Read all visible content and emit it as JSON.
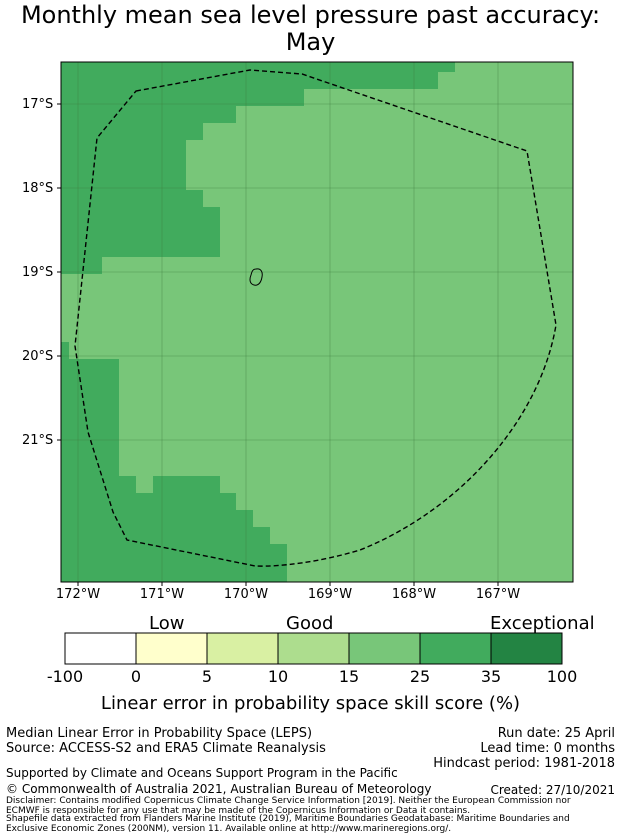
{
  "title_line1": "Monthly mean sea level pressure past accuracy:",
  "title_line2": "May",
  "map": {
    "lat_labels": [
      "17°S",
      "18°S",
      "19°S",
      "20°S",
      "21°S"
    ],
    "lon_labels": [
      "172°W",
      "171°W",
      "170°W",
      "169°W",
      "168°W",
      "167°W"
    ],
    "gridlines": true,
    "boundary_style": "dashed",
    "colors": {
      "lat_labels": "#000000",
      "dark_green": "#41ab5d",
      "medium_green": "#78c679"
    }
  },
  "colorbar": {
    "category_labels": [
      "Low",
      "Good",
      "Exceptional"
    ],
    "bins": [
      {
        "from": -100,
        "to": 0,
        "color": "#ffffff"
      },
      {
        "from": 0,
        "to": 5,
        "color": "#ffffcc"
      },
      {
        "from": 5,
        "to": 10,
        "color": "#d9f0a3"
      },
      {
        "from": 10,
        "to": 15,
        "color": "#addd8e"
      },
      {
        "from": 15,
        "to": 25,
        "color": "#78c679"
      },
      {
        "from": 25,
        "to": 35,
        "color": "#41ab5d"
      },
      {
        "from": 35,
        "to": 100,
        "color": "#238443"
      }
    ],
    "tick_labels": [
      "-100",
      "0",
      "5",
      "10",
      "15",
      "25",
      "35",
      "100"
    ],
    "title": "Linear error in probability space skill score (%)"
  },
  "info": {
    "left_line1": "Median Linear Error in Probability Space (LEPS)",
    "left_line2": "Source: ACCESS-S2 and ERA5 Climate Reanalysis",
    "right_line1": "Run date: 25 April",
    "right_line2": "Lead time: 0 months",
    "right_line3": "Hindcast period: 1981-2018",
    "support": "Supported by Climate and Oceans Support Program in the Pacific",
    "copyright": "© Commonwealth of Australia 2021, Australian Bureau of Meteorology",
    "created": "Created: 27/10/2021",
    "disclaimer1": "Disclaimer: Contains modified Copernicus Climate Change Service Information [2019]. Neither the European Commission nor",
    "disclaimer2": "ECMWF is responsible for any use that may be made of the Copernicus Information or Data it contains.",
    "shapefile1": "Shapefile data extracted from Flanders Marine Institute (2019), Maritime Boundaries Geodatabase: Maritime Boundaries and",
    "shapefile2": "Exclusive Economic Zones (200NM), version 11. Available online at http://www.marineregions.org/."
  }
}
